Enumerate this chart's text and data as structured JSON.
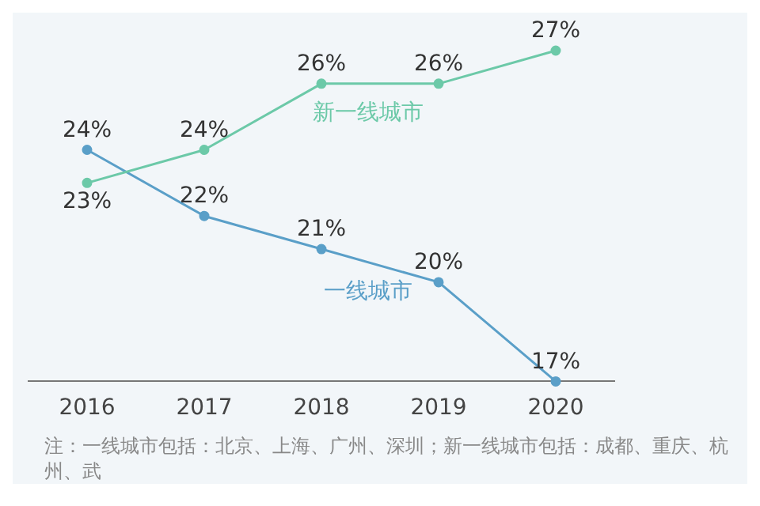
{
  "chart_data": {
    "type": "line",
    "categories": [
      "2016",
      "2017",
      "2018",
      "2019",
      "2020"
    ],
    "series": [
      {
        "name": "新一线城市",
        "color": "#6cc9a8",
        "values": [
          23,
          24,
          26,
          26,
          27
        ],
        "value_labels": [
          "23%",
          "24%",
          "26%",
          "26%",
          "27%"
        ]
      },
      {
        "name": "一线城市",
        "color": "#5a9fc8",
        "values": [
          24,
          22,
          21,
          20,
          17
        ],
        "value_labels": [
          "24%",
          "22%",
          "21%",
          "20%",
          "17%"
        ]
      }
    ],
    "annotations": [
      "注：一线城市包括：北京、上海、广州、深圳；新一线城市包括：成都、重庆、杭州、武"
    ],
    "legend": false,
    "grid": false,
    "marker": "circle",
    "line_style": "solid",
    "tick_labels": "x"
  }
}
